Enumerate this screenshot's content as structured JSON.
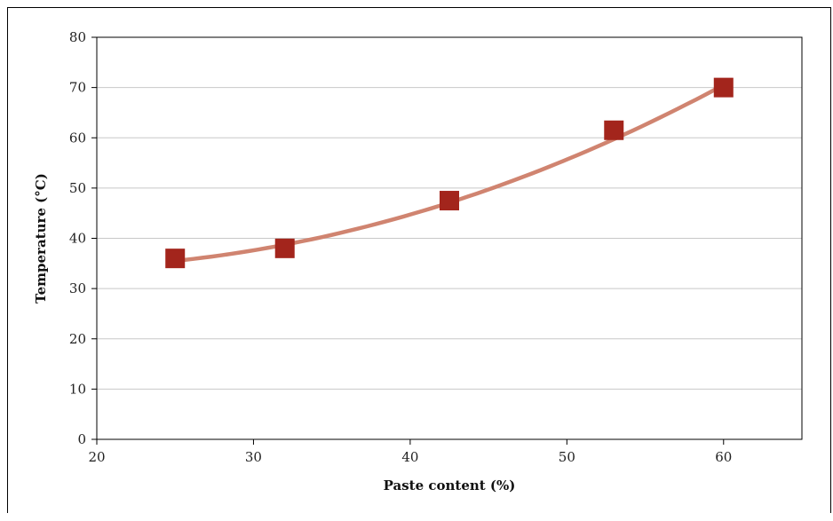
{
  "chart_data": {
    "type": "scatter",
    "title": "",
    "xlabel": "Paste content (%)",
    "ylabel": "Temperature (°C)",
    "xlim": [
      20,
      65
    ],
    "ylim": [
      0,
      80
    ],
    "x_ticks": [
      "20",
      "30",
      "40",
      "50",
      "60"
    ],
    "y_ticks": [
      "0",
      "10",
      "20",
      "30",
      "40",
      "50",
      "60",
      "70",
      "80"
    ],
    "grid": "horizontal",
    "series": [
      {
        "marker": "square",
        "color": "#a3251c",
        "points": [
          {
            "x": 25,
            "y": 36
          },
          {
            "x": 32,
            "y": 38
          },
          {
            "x": 42.5,
            "y": 47.5
          },
          {
            "x": 53,
            "y": 61.5
          },
          {
            "x": 60,
            "y": 70
          }
        ]
      }
    ],
    "trendline": {
      "type": "polynomial",
      "color": "#d08470",
      "x_range": [
        25,
        60
      ],
      "points": [
        {
          "x": 25,
          "y": 35.5
        },
        {
          "x": 32,
          "y": 38.8
        },
        {
          "x": 42.5,
          "y": 47.1
        },
        {
          "x": 53,
          "y": 60.2
        },
        {
          "x": 60,
          "y": 70.5
        }
      ]
    }
  }
}
